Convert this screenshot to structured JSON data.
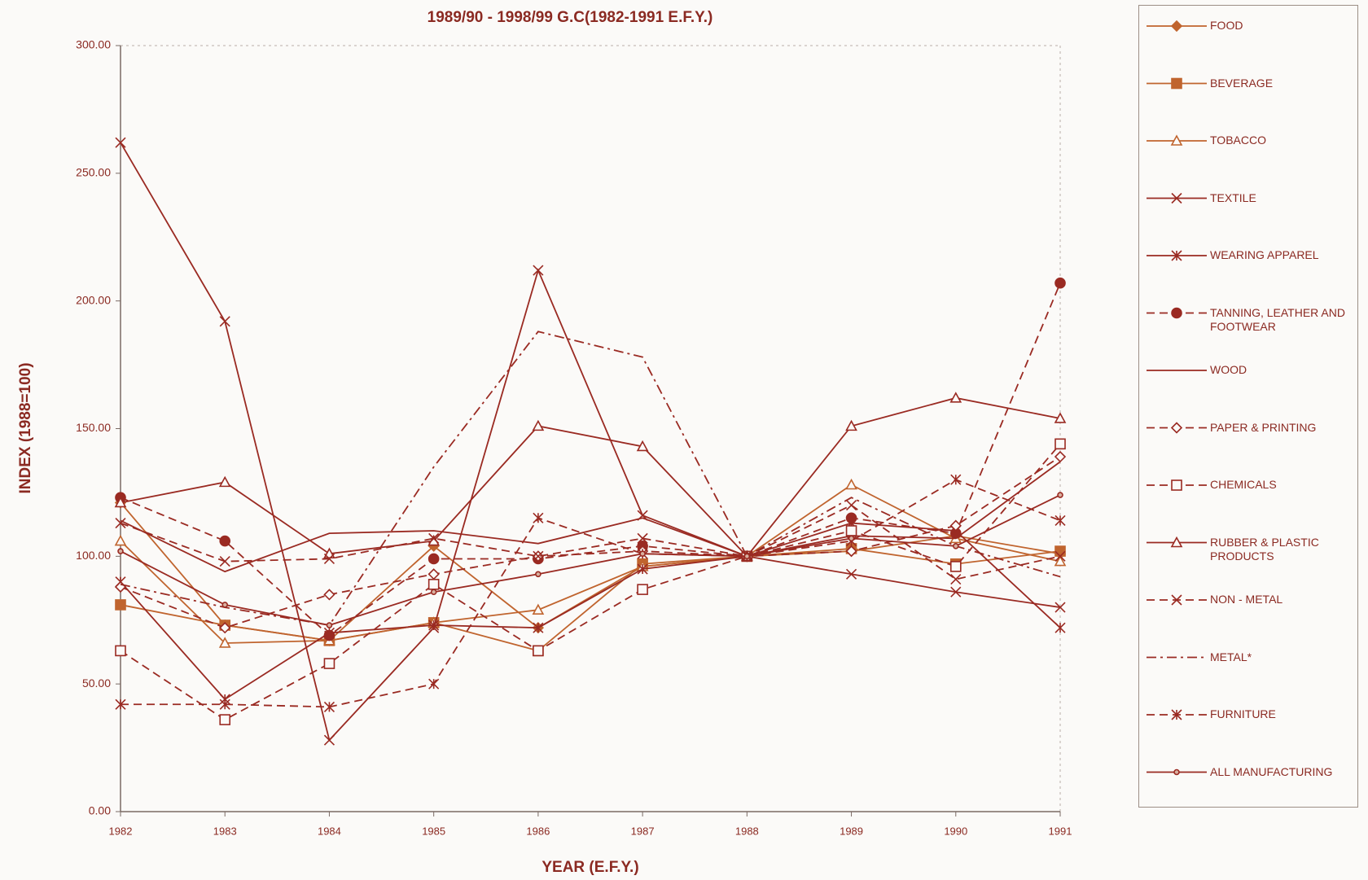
{
  "chart_data": {
    "type": "line",
    "title": "1989/90 - 1998/99 G.C(1982-1991 E.F.Y.)",
    "xlabel": "YEAR (E.F.Y.)",
    "ylabel": "INDEX (1988=100)",
    "categories": [
      "1982",
      "1983",
      "1984",
      "1985",
      "1986",
      "1987",
      "1988",
      "1989",
      "1990",
      "1991"
    ],
    "ylim": [
      0,
      300
    ],
    "yticks": [
      {
        "value": 0,
        "label": "0.00"
      },
      {
        "value": 50,
        "label": "50.00"
      },
      {
        "value": 100,
        "label": "100.00"
      },
      {
        "value": 150,
        "label": "150.00"
      },
      {
        "value": 200,
        "label": "200.00"
      },
      {
        "value": 250,
        "label": "250.00"
      },
      {
        "value": 300,
        "label": "300.00"
      }
    ],
    "legend": "right",
    "series": [
      {
        "name": "FOOD",
        "color": "#c0642e",
        "marker": "diamond-filled",
        "dash": "solid",
        "values": [
          121,
          73,
          67,
          104,
          72,
          96,
          100,
          102,
          108,
          101
        ]
      },
      {
        "name": "BEVERAGE",
        "color": "#c0642e",
        "marker": "square-filled",
        "dash": "solid",
        "values": [
          81,
          73,
          67,
          74,
          63,
          97,
          100,
          103,
          97,
          102
        ]
      },
      {
        "name": "TOBACCO",
        "color": "#c0642e",
        "marker": "triangle-open",
        "dash": "solid",
        "values": [
          106,
          66,
          67,
          74,
          79,
          96,
          100,
          128,
          107,
          98
        ]
      },
      {
        "name": "TEXTILE",
        "color": "#9a2a22",
        "marker": "x",
        "dash": "solid",
        "values": [
          262,
          192,
          28,
          72,
          212,
          116,
          100,
          93,
          86,
          80
        ]
      },
      {
        "name": "WEARING APPAREL",
        "color": "#9a2a22",
        "marker": "star",
        "dash": "solid",
        "values": [
          90,
          44,
          70,
          73,
          72,
          95,
          100,
          113,
          110,
          72
        ]
      },
      {
        "name": "TANNING, LEATHER AND FOOTWEAR",
        "color": "#9a2a22",
        "marker": "circle-filled",
        "dash": "dashed",
        "values": [
          123,
          106,
          69,
          99,
          99,
          104,
          100,
          115,
          109,
          207
        ]
      },
      {
        "name": "WOOD",
        "color": "#9a2a22",
        "marker": "none",
        "dash": "solid",
        "values": [
          114,
          94,
          109,
          110,
          105,
          115,
          100,
          108,
          107,
          137
        ]
      },
      {
        "name": "PAPER & PRINTING",
        "color": "#9a2a22",
        "marker": "diamond-open",
        "dash": "dashed",
        "values": [
          88,
          72,
          85,
          93,
          100,
          102,
          100,
          102,
          112,
          139
        ]
      },
      {
        "name": "CHEMICALS",
        "color": "#9a2a22",
        "marker": "square-open",
        "dash": "dashed",
        "values": [
          63,
          36,
          58,
          89,
          63,
          87,
          100,
          110,
          96,
          144
        ]
      },
      {
        "name": "RUBBER & PLASTIC PRODUCTS",
        "color": "#9a2a22",
        "marker": "triangle-open",
        "dash": "solid",
        "values": [
          121,
          129,
          101,
          106,
          151,
          143,
          100,
          151,
          162,
          154
        ]
      },
      {
        "name": "NON - METAL",
        "color": "#9a2a22",
        "marker": "x",
        "dash": "dashed",
        "values": [
          113,
          98,
          99,
          107,
          100,
          107,
          100,
          120,
          91,
          100
        ]
      },
      {
        "name": "METAL*",
        "color": "#9a2a22",
        "marker": "none",
        "dash": "dashdot",
        "values": [
          89,
          80,
          73,
          135,
          188,
          178,
          100,
          123,
          104,
          92
        ]
      },
      {
        "name": "FURNITURE",
        "color": "#9a2a22",
        "marker": "star",
        "dash": "dashed",
        "values": [
          42,
          42,
          41,
          50,
          115,
          101,
          100,
          106,
          130,
          114
        ]
      },
      {
        "name": "ALL MANUFACTURING",
        "color": "#9a2a22",
        "marker": "dot",
        "dash": "solid",
        "values": [
          102,
          81,
          73,
          86,
          93,
          101,
          100,
          107,
          104,
          124
        ]
      }
    ]
  }
}
